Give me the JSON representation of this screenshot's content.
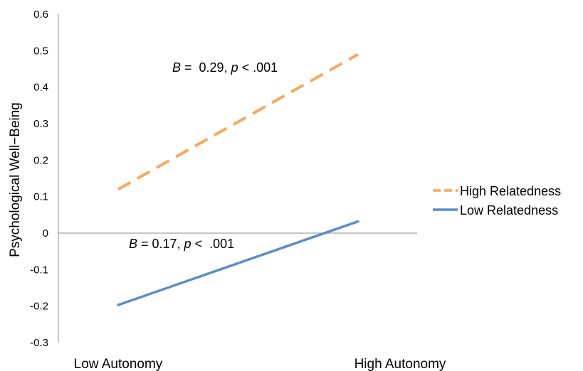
{
  "chart_data": {
    "type": "line",
    "categories": [
      "Low Autonomy",
      "High Autonomy"
    ],
    "ylabel": "Psychological Well−Being",
    "ylim": [
      -0.3,
      0.6
    ],
    "yticks": [
      "0.6",
      "0.5",
      "0.4",
      "0.3",
      "0.2",
      "0.1",
      "0",
      "-0.1",
      "-0.2",
      "-0.3"
    ],
    "grid": false,
    "legend_position": "right",
    "series": [
      {
        "name": "High Relatedness",
        "values": [
          0.12,
          0.49
        ],
        "color": "#f5a95c",
        "dash": "dashed",
        "annotation": {
          "B": "B",
          "text": " =  0.29, ",
          "p": "p",
          "text2": " < .001"
        }
      },
      {
        "name": "Low Relatedness",
        "values": [
          -0.197,
          0.032
        ],
        "color": "#5b8ec6",
        "dash": "solid",
        "annotation": {
          "B": "B",
          "text": " = 0.17, ",
          "p": "p",
          "text2": " <  .001"
        }
      }
    ]
  }
}
